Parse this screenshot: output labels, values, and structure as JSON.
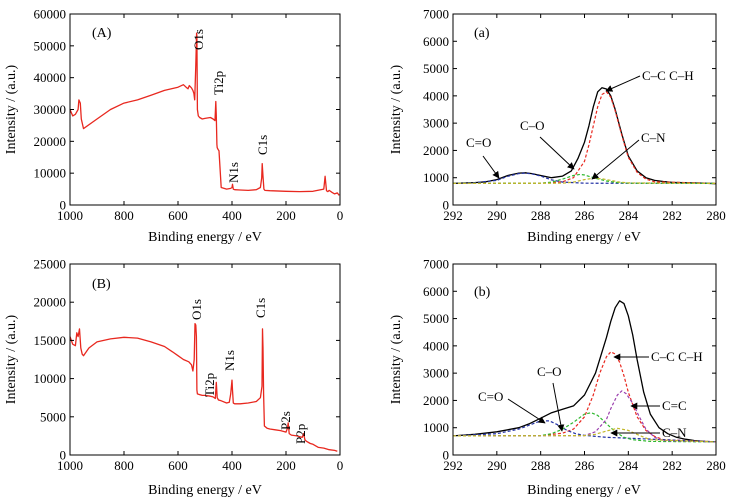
{
  "chart_data": [
    {
      "type": "line",
      "panel_label": "(A)",
      "xlabel": "Binding energy / eV",
      "ylabel": "Intensity / (a.u.)",
      "xlim": [
        1000,
        0
      ],
      "ylim": [
        0,
        60000
      ],
      "x_ticks": [
        1000,
        800,
        600,
        400,
        200,
        0
      ],
      "y_ticks": [
        0,
        10000,
        20000,
        30000,
        40000,
        50000,
        60000
      ],
      "series": [
        {
          "color": "#e8281f",
          "x": [
            1000,
            990,
            980,
            970,
            967,
            962,
            958,
            950,
            900,
            850,
            800,
            750,
            700,
            650,
            600,
            580,
            570,
            563,
            558,
            550,
            545,
            541,
            538,
            534,
            531,
            530,
            528,
            525,
            520,
            510,
            500,
            480,
            470,
            463,
            460,
            458,
            456,
            455,
            452,
            448,
            440,
            420,
            405,
            400,
            398,
            395,
            390,
            370,
            340,
            310,
            295,
            290,
            288,
            285,
            282,
            278,
            260,
            200,
            150,
            100,
            60,
            55,
            50,
            45,
            40,
            30,
            20,
            10,
            3
          ],
          "y": [
            30000,
            28000,
            28500,
            30000,
            33000,
            32000,
            27000,
            24000,
            27000,
            30000,
            32000,
            33000,
            34500,
            36000,
            37000,
            37800,
            37000,
            36500,
            37500,
            36800,
            36000,
            35000,
            33000,
            44000,
            54000,
            53000,
            30000,
            28000,
            27500,
            27000,
            27200,
            27500,
            27000,
            26500,
            32500,
            28000,
            19000,
            18000,
            17500,
            17000,
            5500,
            5000,
            5200,
            5500,
            6500,
            5000,
            4800,
            4700,
            4600,
            4800,
            5500,
            8500,
            13000,
            9000,
            5000,
            4600,
            4500,
            4300,
            4200,
            4300,
            5000,
            9000,
            4500,
            4200,
            4600,
            4000,
            3500,
            3800,
            3000
          ]
        }
      ],
      "annotations": [
        "O1s",
        "Ti2p",
        "N1s",
        "C1s"
      ]
    },
    {
      "type": "line",
      "panel_label": "(a)",
      "xlabel": "Binding energy / eV",
      "ylabel": "Intensity / (a.u.)",
      "xlim": [
        292,
        280
      ],
      "ylim": [
        0,
        7000
      ],
      "x_ticks": [
        292,
        290,
        288,
        286,
        284,
        282,
        280
      ],
      "y_ticks": [
        0,
        1000,
        2000,
        3000,
        4000,
        5000,
        6000,
        7000
      ],
      "series": [
        {
          "color": "#000000",
          "style": "solid",
          "x": [
            292,
            291,
            290.5,
            290,
            289.5,
            289,
            288.7,
            288.4,
            288,
            287.5,
            287,
            286.6,
            286.3,
            286,
            285.8,
            285.6,
            285.4,
            285.2,
            285,
            284.8,
            284.6,
            284.3,
            284,
            283.6,
            283.2,
            282.8,
            282.4,
            282,
            281.5,
            281,
            280.5,
            280
          ],
          "y": [
            790,
            820,
            850,
            930,
            1080,
            1170,
            1180,
            1150,
            1080,
            1000,
            1060,
            1250,
            1700,
            2300,
            2900,
            3600,
            4150,
            4300,
            4250,
            4000,
            3500,
            2600,
            1800,
            1250,
            1000,
            900,
            860,
            830,
            820,
            810,
            800,
            780
          ]
        },
        {
          "color": "#e8281f",
          "style": "dashed",
          "x": [
            292,
            288,
            287,
            286.5,
            286,
            285.8,
            285.6,
            285.4,
            285.2,
            285,
            284.8,
            284.6,
            284.3,
            284,
            283.6,
            283.2,
            282.8,
            280
          ],
          "y": [
            790,
            800,
            850,
            1000,
            1600,
            2200,
            2900,
            3600,
            4050,
            4150,
            3950,
            3450,
            2550,
            1750,
            1200,
            950,
            850,
            790
          ]
        },
        {
          "color": "#2433a6",
          "style": "dashed",
          "x": [
            292,
            291,
            290,
            289.5,
            289,
            288.7,
            288.4,
            288,
            287.5,
            287,
            286,
            280
          ],
          "y": [
            790,
            820,
            900,
            1050,
            1150,
            1170,
            1140,
            1060,
            920,
            840,
            800,
            790
          ]
        },
        {
          "color": "#2eb82e",
          "style": "dashed",
          "x": [
            292,
            288,
            287.5,
            287,
            286.5,
            286.2,
            286,
            285.5,
            285,
            284.5,
            284,
            280
          ],
          "y": [
            790,
            800,
            840,
            950,
            1080,
            1120,
            1100,
            980,
            880,
            820,
            800,
            790
          ]
        },
        {
          "color": "#c2b82a",
          "style": "dashed",
          "x": [
            292,
            287,
            286.5,
            286,
            285.6,
            285.2,
            284.8,
            284.4,
            284,
            280
          ],
          "y": [
            790,
            800,
            840,
            930,
            980,
            960,
            900,
            840,
            810,
            790
          ]
        }
      ],
      "annotations": [
        "C=O",
        "C–O",
        "C–C C–H",
        "C–N"
      ]
    },
    {
      "type": "line",
      "panel_label": "(B)",
      "xlabel": "Binding energy / eV",
      "ylabel": "Intensity / (a.u.)",
      "xlim": [
        1000,
        0
      ],
      "ylim": [
        0,
        25000
      ],
      "x_ticks": [
        1000,
        800,
        600,
        400,
        200,
        0
      ],
      "y_ticks": [
        0,
        5000,
        10000,
        15000,
        20000,
        25000
      ],
      "series": [
        {
          "color": "#e8281f",
          "x": [
            1000,
            990,
            980,
            975,
            970,
            965,
            960,
            955,
            950,
            930,
            900,
            850,
            800,
            750,
            700,
            650,
            620,
            600,
            580,
            560,
            550,
            545,
            540,
            537,
            534,
            532,
            530,
            528,
            520,
            510,
            500,
            480,
            470,
            462,
            458,
            455,
            450,
            440,
            420,
            410,
            405,
            400,
            398,
            395,
            390,
            370,
            340,
            310,
            295,
            289,
            287,
            285,
            283,
            280,
            270,
            260,
            240,
            220,
            200,
            195,
            192,
            190,
            188,
            180,
            160,
            140,
            135,
            133,
            130,
            125,
            110,
            100,
            80,
            60,
            40,
            20,
            10
          ],
          "y": [
            15500,
            14500,
            14300,
            16000,
            15500,
            16500,
            14000,
            13200,
            13000,
            14000,
            14800,
            15200,
            15400,
            15300,
            14800,
            14200,
            13500,
            13000,
            12500,
            12200,
            11800,
            11000,
            12500,
            17200,
            17000,
            15500,
            8500,
            8000,
            7900,
            7800,
            7800,
            7700,
            7600,
            7400,
            9500,
            7500,
            7200,
            7100,
            6800,
            6900,
            8000,
            9800,
            8500,
            6800,
            6700,
            6700,
            6800,
            7000,
            7500,
            9000,
            16500,
            14000,
            8000,
            3800,
            3500,
            3400,
            3300,
            3200,
            3000,
            3500,
            4200,
            3500,
            2800,
            2600,
            2500,
            2300,
            2800,
            2500,
            2000,
            1800,
            1500,
            1400,
            1000,
            900,
            700,
            600,
            500
          ]
        }
      ],
      "annotations": [
        "O1s",
        "Ti2p",
        "N1s",
        "C1s",
        "P2s",
        "P2p"
      ]
    },
    {
      "type": "line",
      "panel_label": "(b)",
      "xlabel": "Binding energy / eV",
      "ylabel": "Intensity / (a.u.)",
      "xlim": [
        292,
        280
      ],
      "ylim": [
        0,
        7000
      ],
      "x_ticks": [
        292,
        290,
        288,
        286,
        284,
        282,
        280
      ],
      "y_ticks": [
        0,
        1000,
        2000,
        3000,
        4000,
        5000,
        6000,
        7000
      ],
      "series": [
        {
          "color": "#000000",
          "style": "solid",
          "x": [
            292,
            291,
            290,
            289,
            288.5,
            288,
            287.5,
            287,
            286.5,
            286,
            285.5,
            285,
            284.8,
            284.6,
            284.4,
            284.2,
            284,
            283.8,
            283.6,
            283.3,
            283,
            282.6,
            282.2,
            281.8,
            281.4,
            281,
            280.5,
            280
          ],
          "y": [
            700,
            760,
            850,
            1000,
            1150,
            1350,
            1550,
            1680,
            1800,
            2200,
            3000,
            4300,
            4900,
            5400,
            5650,
            5550,
            5100,
            4400,
            3500,
            2300,
            1500,
            1000,
            780,
            650,
            580,
            530,
            500,
            480
          ]
        },
        {
          "color": "#e8281f",
          "style": "dashed",
          "x": [
            292,
            288,
            287,
            286.5,
            286,
            285.6,
            285.3,
            285,
            284.8,
            284.6,
            284.4,
            284.2,
            284,
            283.6,
            283.2,
            282.8,
            282.4,
            280
          ],
          "y": [
            700,
            710,
            800,
            950,
            1400,
            2200,
            3000,
            3600,
            3780,
            3700,
            3400,
            2900,
            2300,
            1400,
            900,
            680,
            560,
            480
          ]
        },
        {
          "color": "#2433a6",
          "style": "dashed",
          "x": [
            292,
            290,
            289,
            288.5,
            288,
            287.6,
            287.2,
            286.8,
            286.4,
            286,
            285,
            280
          ],
          "y": [
            700,
            780,
            950,
            1100,
            1250,
            1250,
            1100,
            900,
            780,
            720,
            650,
            480
          ]
        },
        {
          "color": "#2eb82e",
          "style": "dashed",
          "x": [
            292,
            288,
            287.5,
            287,
            286.5,
            286,
            285.7,
            285.4,
            285,
            284.6,
            284.2,
            283.8,
            283,
            280
          ],
          "y": [
            700,
            710,
            780,
            950,
            1200,
            1500,
            1550,
            1450,
            1150,
            850,
            650,
            560,
            500,
            480
          ]
        },
        {
          "color": "#9b3fae",
          "style": "dashed",
          "x": [
            292,
            286,
            285.5,
            285,
            284.8,
            284.5,
            284.3,
            284.1,
            283.8,
            283.5,
            283.2,
            282.8,
            282.4,
            280
          ],
          "y": [
            700,
            710,
            850,
            1300,
            1700,
            2200,
            2350,
            2250,
            1900,
            1400,
            950,
            650,
            530,
            480
          ]
        },
        {
          "color": "#c2b82a",
          "style": "dashed",
          "x": [
            292,
            286,
            285.5,
            285,
            284.5,
            284,
            283.5,
            283,
            280
          ],
          "y": [
            700,
            710,
            760,
            880,
            980,
            900,
            720,
            560,
            480
          ]
        }
      ],
      "annotations": [
        "C=O",
        "C–O",
        "C–C C–H",
        "C=C",
        "C–N"
      ]
    }
  ]
}
